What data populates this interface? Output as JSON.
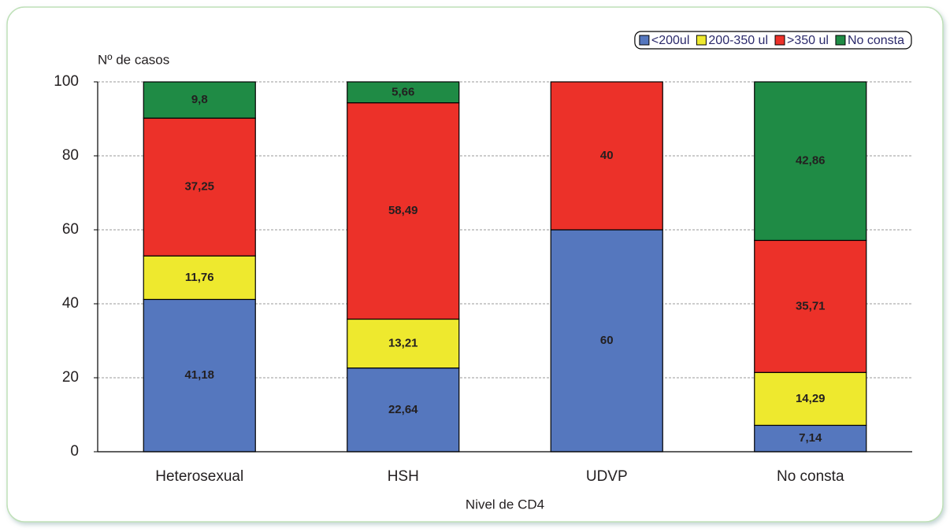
{
  "chart_data": {
    "type": "stacked-bar",
    "y_label": "Nº de casos",
    "x_label": "Nivel de CD4",
    "categories": [
      "Heterosexual",
      "HSH",
      "UDVP",
      "No consta"
    ],
    "series": [
      {
        "name": "<200ul",
        "color": "#5577be",
        "values": [
          41.18,
          22.64,
          60,
          7.14
        ],
        "value_labels": [
          "41,18",
          "22,64",
          "60",
          "7,14"
        ]
      },
      {
        "name": "200-350 ul",
        "color": "#eee92e",
        "values": [
          11.76,
          13.21,
          null,
          14.29
        ],
        "value_labels": [
          "11,76",
          "13,21",
          null,
          "14,29"
        ]
      },
      {
        "name": ">350 ul",
        "color": "#ec3129",
        "values": [
          37.25,
          58.49,
          40,
          35.71
        ],
        "value_labels": [
          "37,25",
          "58,49",
          "40",
          "35,71"
        ]
      },
      {
        "name": "No consta",
        "color": "#1f8b45",
        "values": [
          9.8,
          5.66,
          null,
          42.86
        ],
        "value_labels": [
          "9,8",
          "5,66",
          null,
          "42,86"
        ]
      }
    ],
    "ylim": [
      0,
      100
    ],
    "yticks": [
      0,
      20,
      40,
      60,
      80,
      100
    ],
    "grid": true,
    "legend": "top-right"
  }
}
